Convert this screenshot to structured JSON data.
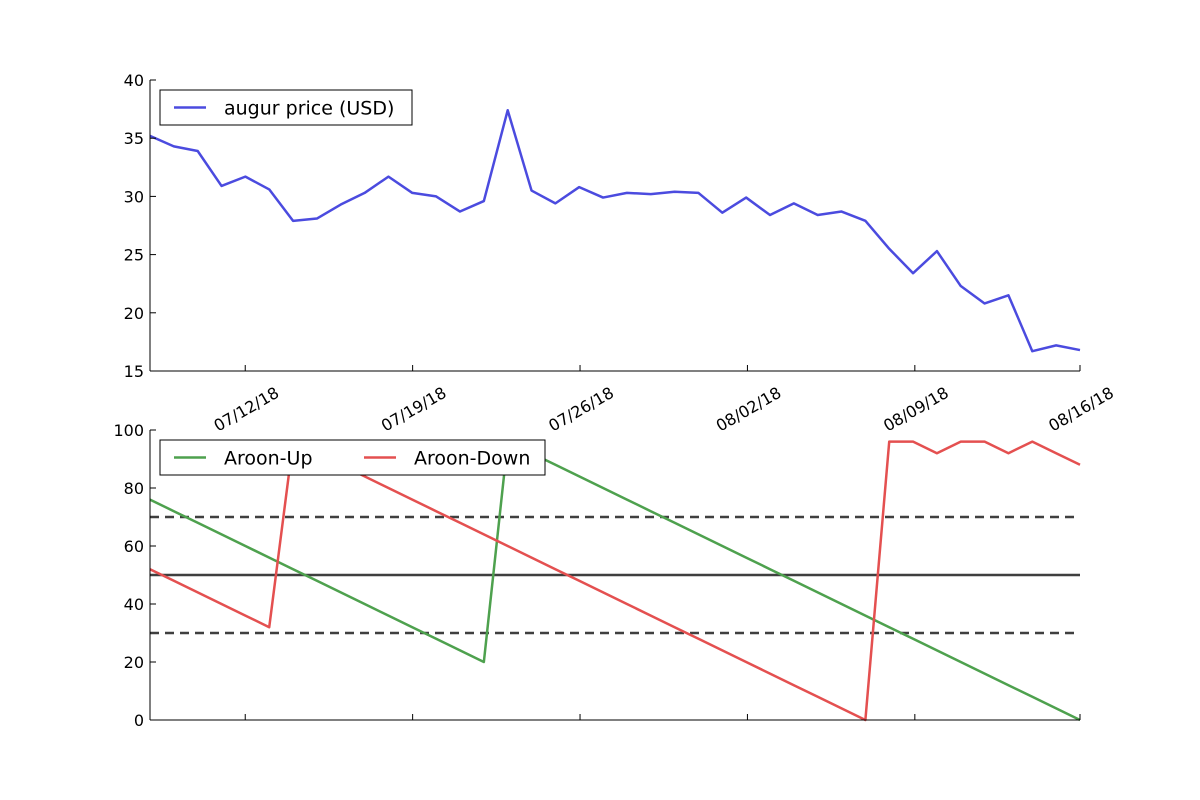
{
  "chart_data": [
    {
      "type": "line",
      "title": "",
      "xlabel": "",
      "ylabel": "",
      "x_tick_labels": [
        "07/12/18",
        "07/19/18",
        "07/26/18",
        "08/02/18",
        "08/09/18",
        "08/16/18"
      ],
      "ylim": [
        15,
        40
      ],
      "y_ticks": [
        15,
        20,
        25,
        30,
        35,
        40
      ],
      "legend_position": "upper-left",
      "grid": false,
      "series": [
        {
          "name": "augur price (USD)",
          "color": "#4b4bdf",
          "values": [
            35.2,
            34.3,
            33.9,
            30.9,
            31.7,
            30.6,
            27.9,
            28.1,
            29.3,
            30.3,
            31.7,
            30.3,
            30.0,
            28.7,
            29.6,
            37.4,
            30.5,
            29.4,
            30.8,
            29.9,
            30.3,
            30.2,
            30.4,
            30.3,
            28.6,
            29.9,
            28.4,
            29.4,
            28.4,
            28.7,
            27.9,
            25.5,
            23.4,
            25.3,
            22.3,
            20.8,
            21.5,
            16.7,
            17.2,
            16.8
          ]
        }
      ]
    },
    {
      "type": "line",
      "title": "",
      "xlabel": "",
      "ylabel": "",
      "ylim": [
        0,
        100
      ],
      "y_ticks": [
        0,
        20,
        40,
        60,
        80,
        100
      ],
      "legend_position": "upper-left",
      "grid": false,
      "reference_lines": [
        {
          "value": 70,
          "style": "dashed",
          "color": "#3f3f3f"
        },
        {
          "value": 50,
          "style": "solid",
          "color": "#3f3f3f"
        },
        {
          "value": 30,
          "style": "dashed",
          "color": "#3f3f3f"
        }
      ],
      "series": [
        {
          "name": "Aroon-Up",
          "color": "#4ea14e",
          "values": [
            76,
            72,
            68,
            64,
            60,
            56,
            52,
            48,
            44,
            40,
            36,
            32,
            28,
            24,
            20,
            96,
            92,
            88,
            84,
            80,
            76,
            72,
            68,
            64,
            60,
            56,
            52,
            48,
            44,
            40,
            36,
            32,
            28,
            24,
            20,
            16,
            12,
            8,
            4,
            0
          ]
        },
        {
          "name": "Aroon-Down",
          "color": "#e45050",
          "values": [
            52,
            48,
            44,
            40,
            36,
            32,
            96,
            92,
            88,
            84,
            80,
            76,
            72,
            68,
            64,
            60,
            56,
            52,
            48,
            44,
            40,
            36,
            32,
            28,
            24,
            20,
            16,
            12,
            8,
            4,
            0,
            96,
            96,
            92,
            96,
            96,
            92,
            96,
            92,
            88
          ]
        }
      ]
    }
  ]
}
